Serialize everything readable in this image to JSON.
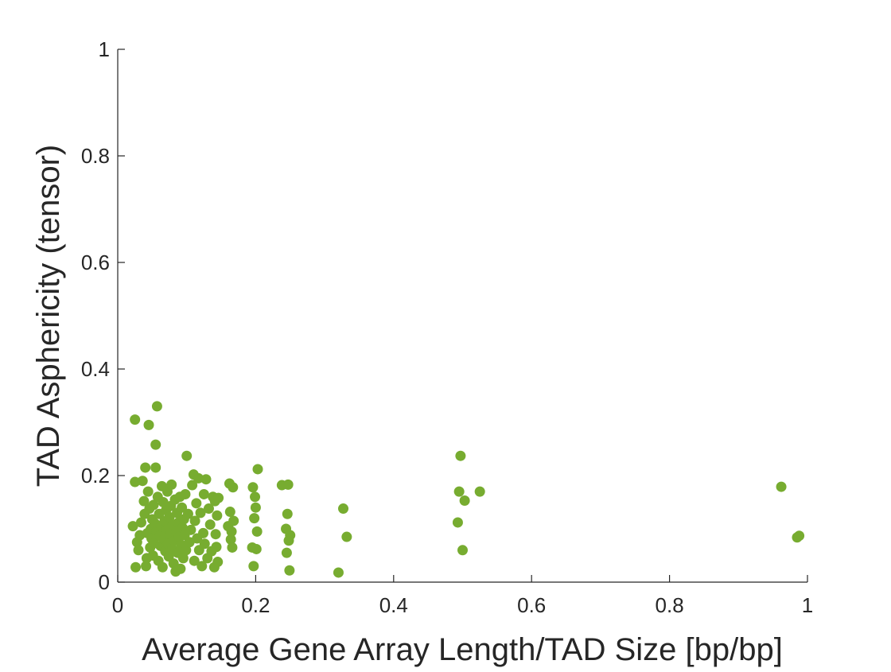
{
  "chart_data": {
    "type": "scatter",
    "title": "",
    "xlabel": "Average Gene Array Length/TAD Size [bp/bp]",
    "ylabel": "TAD Asphericity (tensor)",
    "xlim": [
      0,
      1
    ],
    "ylim": [
      0,
      1
    ],
    "xticks": [
      "0",
      "0.2",
      "0.4",
      "0.6",
      "0.8",
      "1"
    ],
    "yticks": [
      "0",
      "0.2",
      "0.4",
      "0.6",
      "0.8",
      "1"
    ],
    "grid": false,
    "legend": "none",
    "marker_color": "#77AC30",
    "series": [
      {
        "points": [
          [
            0.022,
            0.105
          ],
          [
            0.025,
            0.305
          ],
          [
            0.025,
            0.188
          ],
          [
            0.026,
            0.028
          ],
          [
            0.028,
            0.075
          ],
          [
            0.03,
            0.06
          ],
          [
            0.032,
            0.088
          ],
          [
            0.034,
            0.112
          ],
          [
            0.036,
            0.19
          ],
          [
            0.038,
            0.152
          ],
          [
            0.039,
            0.128
          ],
          [
            0.04,
            0.215
          ],
          [
            0.041,
            0.03
          ],
          [
            0.042,
            0.045
          ],
          [
            0.043,
            0.092
          ],
          [
            0.044,
            0.17
          ],
          [
            0.045,
            0.295
          ],
          [
            0.046,
            0.138
          ],
          [
            0.047,
            0.065
          ],
          [
            0.048,
            0.1
          ],
          [
            0.049,
            0.082
          ],
          [
            0.05,
            0.118
          ],
          [
            0.051,
            0.05
          ],
          [
            0.052,
            0.145
          ],
          [
            0.053,
            0.073
          ],
          [
            0.054,
            0.11
          ],
          [
            0.055,
            0.258
          ],
          [
            0.055,
            0.215
          ],
          [
            0.056,
            0.095
          ],
          [
            0.057,
            0.33
          ],
          [
            0.058,
            0.16
          ],
          [
            0.059,
            0.04
          ],
          [
            0.06,
            0.128
          ],
          [
            0.061,
            0.087
          ],
          [
            0.062,
            0.068
          ],
          [
            0.063,
            0.105
          ],
          [
            0.064,
            0.18
          ],
          [
            0.065,
            0.028
          ],
          [
            0.066,
            0.15
          ],
          [
            0.067,
            0.08
          ],
          [
            0.068,
            0.115
          ],
          [
            0.069,
            0.058
          ],
          [
            0.07,
            0.135
          ],
          [
            0.071,
            0.098
          ],
          [
            0.072,
            0.17
          ],
          [
            0.073,
            0.072
          ],
          [
            0.074,
            0.048
          ],
          [
            0.075,
            0.122
          ],
          [
            0.076,
            0.09
          ],
          [
            0.077,
            0.143
          ],
          [
            0.078,
            0.183
          ],
          [
            0.079,
            0.062
          ],
          [
            0.08,
            0.108
          ],
          [
            0.081,
            0.035
          ],
          [
            0.082,
            0.078
          ],
          [
            0.083,
            0.155
          ],
          [
            0.084,
            0.02
          ],
          [
            0.085,
            0.095
          ],
          [
            0.086,
            0.13
          ],
          [
            0.087,
            0.055
          ],
          [
            0.088,
            0.112
          ],
          [
            0.089,
            0.085
          ],
          [
            0.09,
            0.16
          ],
          [
            0.091,
            0.025
          ],
          [
            0.092,
            0.07
          ],
          [
            0.093,
            0.14
          ],
          [
            0.094,
            0.102
          ],
          [
            0.095,
            0.045
          ],
          [
            0.096,
            0.118
          ],
          [
            0.097,
            0.088
          ],
          [
            0.098,
            0.165
          ],
          [
            0.099,
            0.06
          ],
          [
            0.1,
            0.237
          ],
          [
            0.102,
            0.128
          ],
          [
            0.104,
            0.075
          ],
          [
            0.106,
            0.098
          ],
          [
            0.108,
            0.182
          ],
          [
            0.11,
            0.202
          ],
          [
            0.111,
            0.04
          ],
          [
            0.112,
            0.115
          ],
          [
            0.114,
            0.148
          ],
          [
            0.115,
            0.082
          ],
          [
            0.117,
            0.195
          ],
          [
            0.118,
            0.06
          ],
          [
            0.12,
            0.13
          ],
          [
            0.122,
            0.03
          ],
          [
            0.124,
            0.092
          ],
          [
            0.125,
            0.165
          ],
          [
            0.126,
            0.072
          ],
          [
            0.128,
            0.193
          ],
          [
            0.13,
            0.045
          ],
          [
            0.132,
            0.138
          ],
          [
            0.134,
            0.108
          ],
          [
            0.136,
            0.058
          ],
          [
            0.138,
            0.16
          ],
          [
            0.14,
            0.028
          ],
          [
            0.141,
            0.152
          ],
          [
            0.142,
            0.09
          ],
          [
            0.143,
            0.066
          ],
          [
            0.144,
            0.125
          ],
          [
            0.145,
            0.038
          ],
          [
            0.146,
            0.158
          ],
          [
            0.16,
            0.105
          ],
          [
            0.162,
            0.185
          ],
          [
            0.163,
            0.132
          ],
          [
            0.164,
            0.08
          ],
          [
            0.165,
            0.095
          ],
          [
            0.166,
            0.065
          ],
          [
            0.167,
            0.178
          ],
          [
            0.168,
            0.115
          ],
          [
            0.195,
            0.065
          ],
          [
            0.196,
            0.178
          ],
          [
            0.197,
            0.03
          ],
          [
            0.198,
            0.12
          ],
          [
            0.199,
            0.16
          ],
          [
            0.2,
            0.14
          ],
          [
            0.201,
            0.062
          ],
          [
            0.202,
            0.095
          ],
          [
            0.203,
            0.212
          ],
          [
            0.238,
            0.182
          ],
          [
            0.244,
            0.1
          ],
          [
            0.245,
            0.055
          ],
          [
            0.246,
            0.128
          ],
          [
            0.247,
            0.183
          ],
          [
            0.248,
            0.078
          ],
          [
            0.249,
            0.022
          ],
          [
            0.25,
            0.088
          ],
          [
            0.32,
            0.018
          ],
          [
            0.327,
            0.138
          ],
          [
            0.332,
            0.085
          ],
          [
            0.493,
            0.112
          ],
          [
            0.495,
            0.17
          ],
          [
            0.497,
            0.237
          ],
          [
            0.5,
            0.06
          ],
          [
            0.503,
            0.153
          ],
          [
            0.525,
            0.17
          ],
          [
            0.962,
            0.179
          ],
          [
            0.985,
            0.084
          ],
          [
            0.988,
            0.087
          ]
        ]
      }
    ]
  }
}
